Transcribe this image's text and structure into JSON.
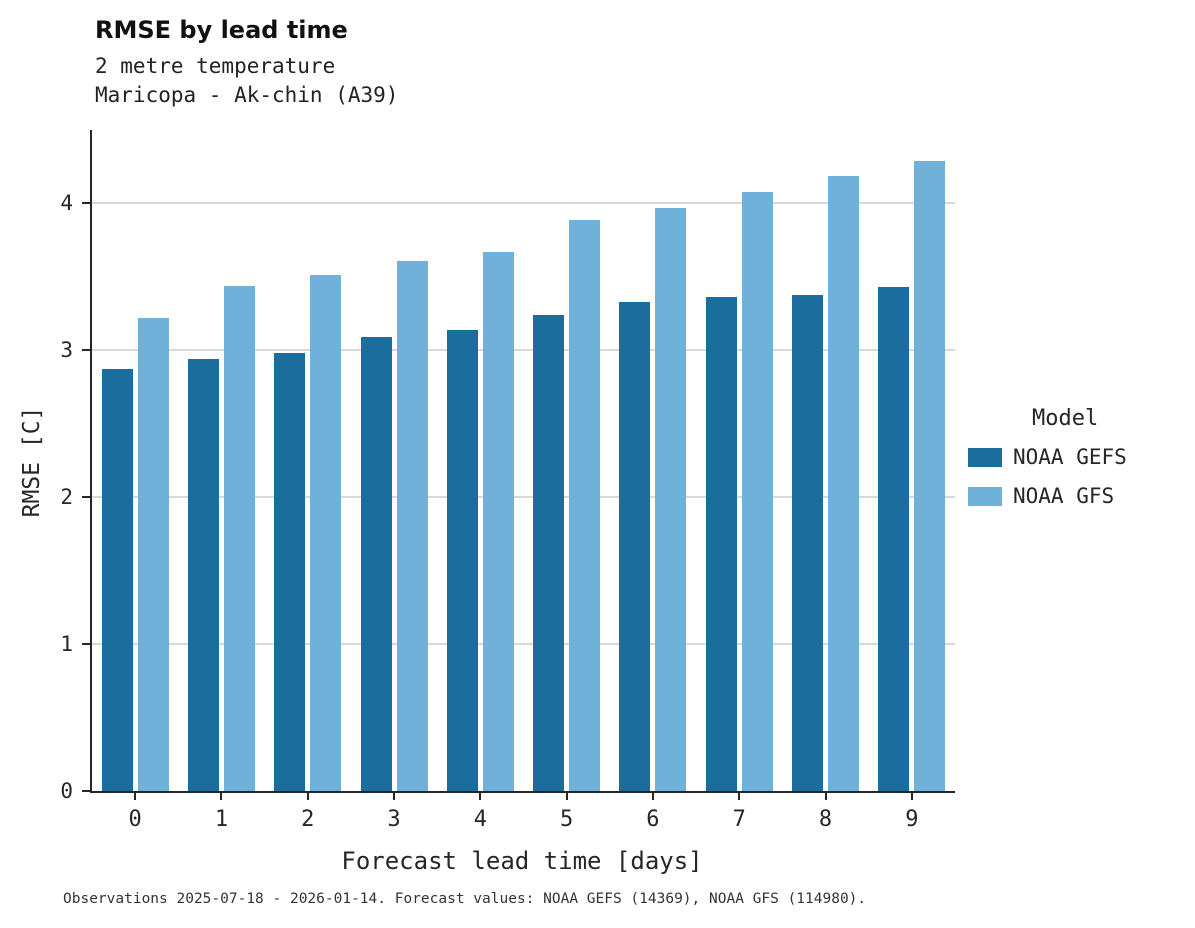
{
  "title": "RMSE by lead time",
  "subtitle1": "2 metre temperature",
  "subtitle2": "Maricopa - Ak-chin (A39)",
  "caption": "Observations 2025-07-18 - 2026-01-14. Forecast values: NOAA GEFS (14369), NOAA GFS (114980).",
  "legend": {
    "title": "Model",
    "entries": [
      {
        "label": "NOAA GEFS",
        "color": "#1a6d9d"
      },
      {
        "label": "NOAA GFS",
        "color": "#6fb1d9"
      }
    ]
  },
  "chart_data": {
    "type": "bar",
    "title": "RMSE by lead time",
    "subtitle": "2 metre temperature — Maricopa - Ak-chin (A39)",
    "xlabel": "Forecast lead time [days]",
    "ylabel": "RMSE [C]",
    "categories": [
      0,
      1,
      2,
      3,
      4,
      5,
      6,
      7,
      8,
      9
    ],
    "series": [
      {
        "name": "NOAA GEFS",
        "color": "#1a6d9d",
        "values": [
          2.87,
          2.94,
          2.98,
          3.09,
          3.14,
          3.24,
          3.33,
          3.36,
          3.38,
          3.43
        ]
      },
      {
        "name": "NOAA GFS",
        "color": "#6fb1d9",
        "values": [
          3.22,
          3.44,
          3.51,
          3.61,
          3.67,
          3.89,
          3.97,
          4.08,
          4.19,
          4.29
        ]
      }
    ],
    "yticks": [
      0,
      1,
      2,
      3,
      4
    ],
    "ylim": [
      0,
      4.5
    ],
    "grid": true,
    "legend_position": "right"
  }
}
